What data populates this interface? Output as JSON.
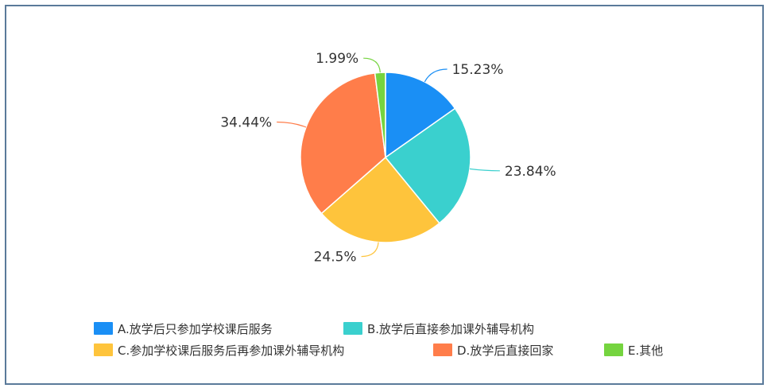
{
  "chart_data": {
    "type": "pie",
    "categories": [
      "A.放学后只参加学校课后服务",
      "B.放学后直接参加课外辅导机构",
      "C.参加学校课后服务后再参加课外辅导机构",
      "D.放学后直接回家",
      "E.其他"
    ],
    "values": [
      15.23,
      23.84,
      24.5,
      34.44,
      1.99
    ],
    "value_labels": [
      "15.23%",
      "23.84%",
      "24.5%",
      "34.44%",
      "1.99%"
    ],
    "colors": [
      "#1a8ff5",
      "#3ad0ce",
      "#fec43c",
      "#ff7d4a",
      "#75d43f"
    ],
    "legend_position": "bottom",
    "start_angle": "top",
    "direction": "clockwise"
  }
}
